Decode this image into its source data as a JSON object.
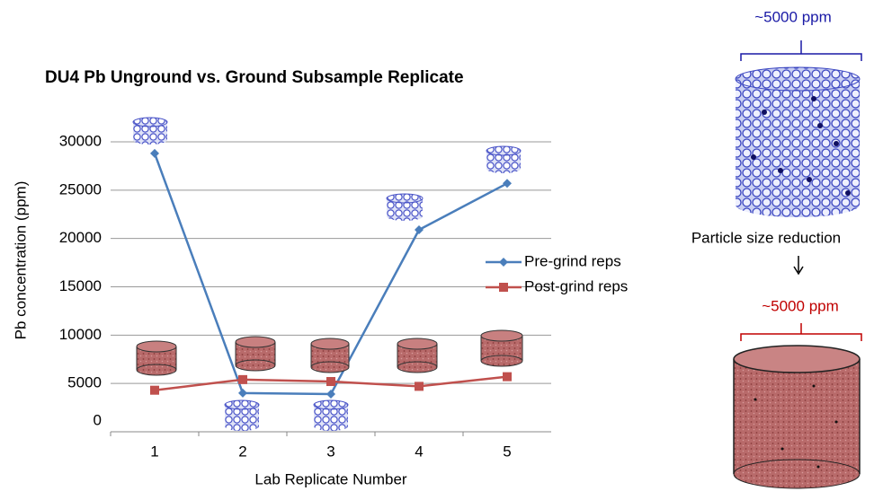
{
  "chart_data": {
    "type": "line",
    "title": "DU4 Pb Unground vs. Ground Subsample Replicate",
    "x_label": "Lab Replicate Number",
    "y_label": "Pb concentration (ppm)",
    "categories": [
      "1",
      "2",
      "3",
      "4",
      "5"
    ],
    "series": [
      {
        "name": "Pre-grind reps",
        "color": "#4a7ebb",
        "marker": "diamond",
        "values": [
          28800,
          4000,
          3900,
          20900,
          25700
        ]
      },
      {
        "name": "Post-grind reps",
        "color": "#c0504d",
        "marker": "square",
        "values": [
          4300,
          5400,
          5200,
          4700,
          5700
        ]
      }
    ],
    "ylim": [
      0,
      30000
    ],
    "yticks": [
      0,
      5000,
      10000,
      15000,
      20000,
      25000,
      30000
    ],
    "grid": true,
    "legend": "right",
    "annotations": [
      {
        "text": "~5000 ppm",
        "color": "#1a1aa6"
      },
      {
        "text": "Particle size reduction",
        "color": "#000000"
      },
      {
        "text": "~5000 ppm",
        "color": "#c00000"
      }
    ]
  }
}
